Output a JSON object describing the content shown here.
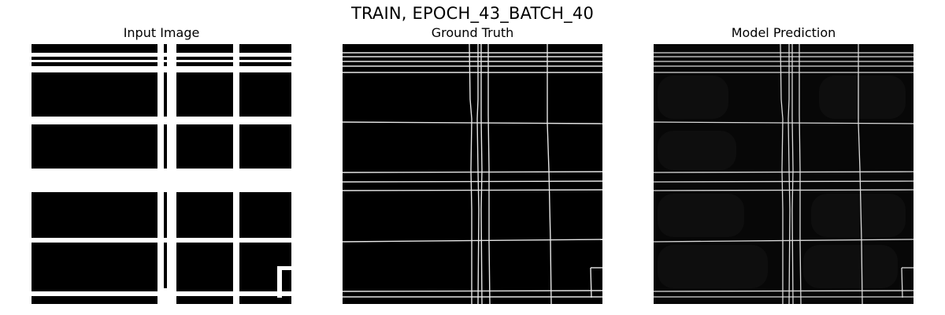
{
  "figure": {
    "title": "TRAIN, EPOCH_43_BATCH_40"
  },
  "panels": [
    {
      "title": "Input Image"
    },
    {
      "title": "Ground Truth"
    },
    {
      "title": "Model Prediction"
    }
  ]
}
